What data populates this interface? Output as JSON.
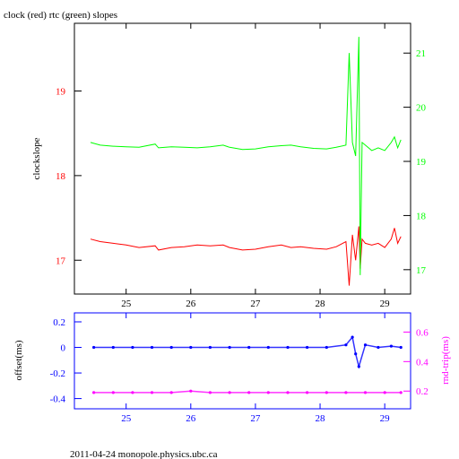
{
  "title": "clock (red) rtc (green) slopes",
  "footer": "2011-04-24 monopole.physics.ubc.ca",
  "colors": {
    "clock": "#ff0000",
    "rtc": "#00ff00",
    "offset": "#0000ff",
    "rndtrip": "#ff00ff",
    "axis": "#000000"
  },
  "chart_data": [
    {
      "type": "line",
      "title": "clock (red) rtc (green) slopes",
      "xlim": [
        24.2,
        29.4
      ],
      "x_ticks": [
        25,
        26,
        27,
        28,
        29
      ],
      "ylabel": "clockslope",
      "ylim_left": [
        16.6,
        19.8
      ],
      "y_ticks_left": [
        17,
        18,
        19
      ],
      "ylim_right": [
        16.55,
        21.55
      ],
      "y_ticks_right": [
        17,
        18,
        19,
        20,
        21
      ],
      "grid": false,
      "series": [
        {
          "name": "clock",
          "axis": "left",
          "color": "#ff0000",
          "x": [
            24.45,
            24.6,
            24.8,
            25.0,
            25.2,
            25.45,
            25.5,
            25.7,
            25.9,
            26.1,
            26.3,
            26.5,
            26.6,
            26.8,
            27.0,
            27.2,
            27.4,
            27.55,
            27.7,
            27.9,
            28.1,
            28.25,
            28.4,
            28.45,
            28.5,
            28.55,
            28.6,
            28.62,
            28.65,
            28.7,
            28.8,
            28.9,
            29.0,
            29.1,
            29.15,
            29.2,
            29.25
          ],
          "y": [
            17.25,
            17.22,
            17.2,
            17.18,
            17.15,
            17.17,
            17.12,
            17.15,
            17.16,
            17.18,
            17.17,
            17.18,
            17.15,
            17.12,
            17.13,
            17.16,
            17.18,
            17.15,
            17.16,
            17.14,
            17.13,
            17.16,
            17.22,
            16.7,
            17.3,
            17.0,
            17.4,
            16.9,
            17.25,
            17.2,
            17.18,
            17.2,
            17.15,
            17.25,
            17.38,
            17.2,
            17.28
          ]
        },
        {
          "name": "rtc",
          "axis": "right",
          "color": "#00ff00",
          "x": [
            24.45,
            24.6,
            24.8,
            25.0,
            25.2,
            25.45,
            25.5,
            25.7,
            25.9,
            26.1,
            26.3,
            26.5,
            26.6,
            26.8,
            27.0,
            27.2,
            27.4,
            27.55,
            27.7,
            27.9,
            28.1,
            28.25,
            28.4,
            28.45,
            28.5,
            28.55,
            28.6,
            28.62,
            28.65,
            28.7,
            28.8,
            28.9,
            29.0,
            29.1,
            29.15,
            29.2,
            29.25
          ],
          "y": [
            19.35,
            19.3,
            19.28,
            19.27,
            19.26,
            19.32,
            19.25,
            19.27,
            19.26,
            19.25,
            19.27,
            19.3,
            19.26,
            19.22,
            19.23,
            19.27,
            19.29,
            19.3,
            19.27,
            19.24,
            19.23,
            19.26,
            19.3,
            21.0,
            19.35,
            19.1,
            21.3,
            16.9,
            19.35,
            19.3,
            19.2,
            19.25,
            19.2,
            19.35,
            19.45,
            19.25,
            19.4
          ]
        }
      ]
    },
    {
      "type": "scatter",
      "xlim": [
        24.2,
        29.4
      ],
      "x_ticks": [
        25,
        26,
        27,
        28,
        29
      ],
      "ylabel_left": "offset(ms)",
      "ylim_left": [
        -0.48,
        0.27
      ],
      "y_ticks_left": [
        -0.4,
        -0.2,
        0,
        0.2
      ],
      "ylabel_right": "rnd-trip(ms)",
      "ylim_right": [
        0.08,
        0.73
      ],
      "y_ticks_right": [
        0.2,
        0.4,
        0.6
      ],
      "grid": false,
      "series": [
        {
          "name": "offset",
          "axis": "left",
          "color": "#0000ff",
          "x": [
            24.5,
            24.8,
            25.1,
            25.4,
            25.7,
            26.0,
            26.3,
            26.6,
            26.9,
            27.2,
            27.5,
            27.8,
            28.1,
            28.4,
            28.5,
            28.55,
            28.6,
            28.7,
            28.9,
            29.1,
            29.25
          ],
          "y": [
            0.0,
            0.0,
            0.0,
            0.0,
            0.0,
            0.0,
            0.0,
            0.0,
            0.0,
            0.0,
            0.0,
            0.0,
            0.0,
            0.02,
            0.08,
            -0.05,
            -0.15,
            0.02,
            0.0,
            0.01,
            0.0
          ]
        },
        {
          "name": "rnd-trip",
          "axis": "right",
          "color": "#ff00ff",
          "x": [
            24.5,
            24.8,
            25.1,
            25.4,
            25.7,
            26.0,
            26.3,
            26.6,
            26.9,
            27.2,
            27.5,
            27.8,
            28.1,
            28.4,
            28.7,
            29.0,
            29.25
          ],
          "y": [
            0.19,
            0.19,
            0.19,
            0.19,
            0.19,
            0.2,
            0.19,
            0.19,
            0.19,
            0.19,
            0.19,
            0.19,
            0.19,
            0.19,
            0.19,
            0.19,
            0.19
          ]
        }
      ]
    }
  ]
}
